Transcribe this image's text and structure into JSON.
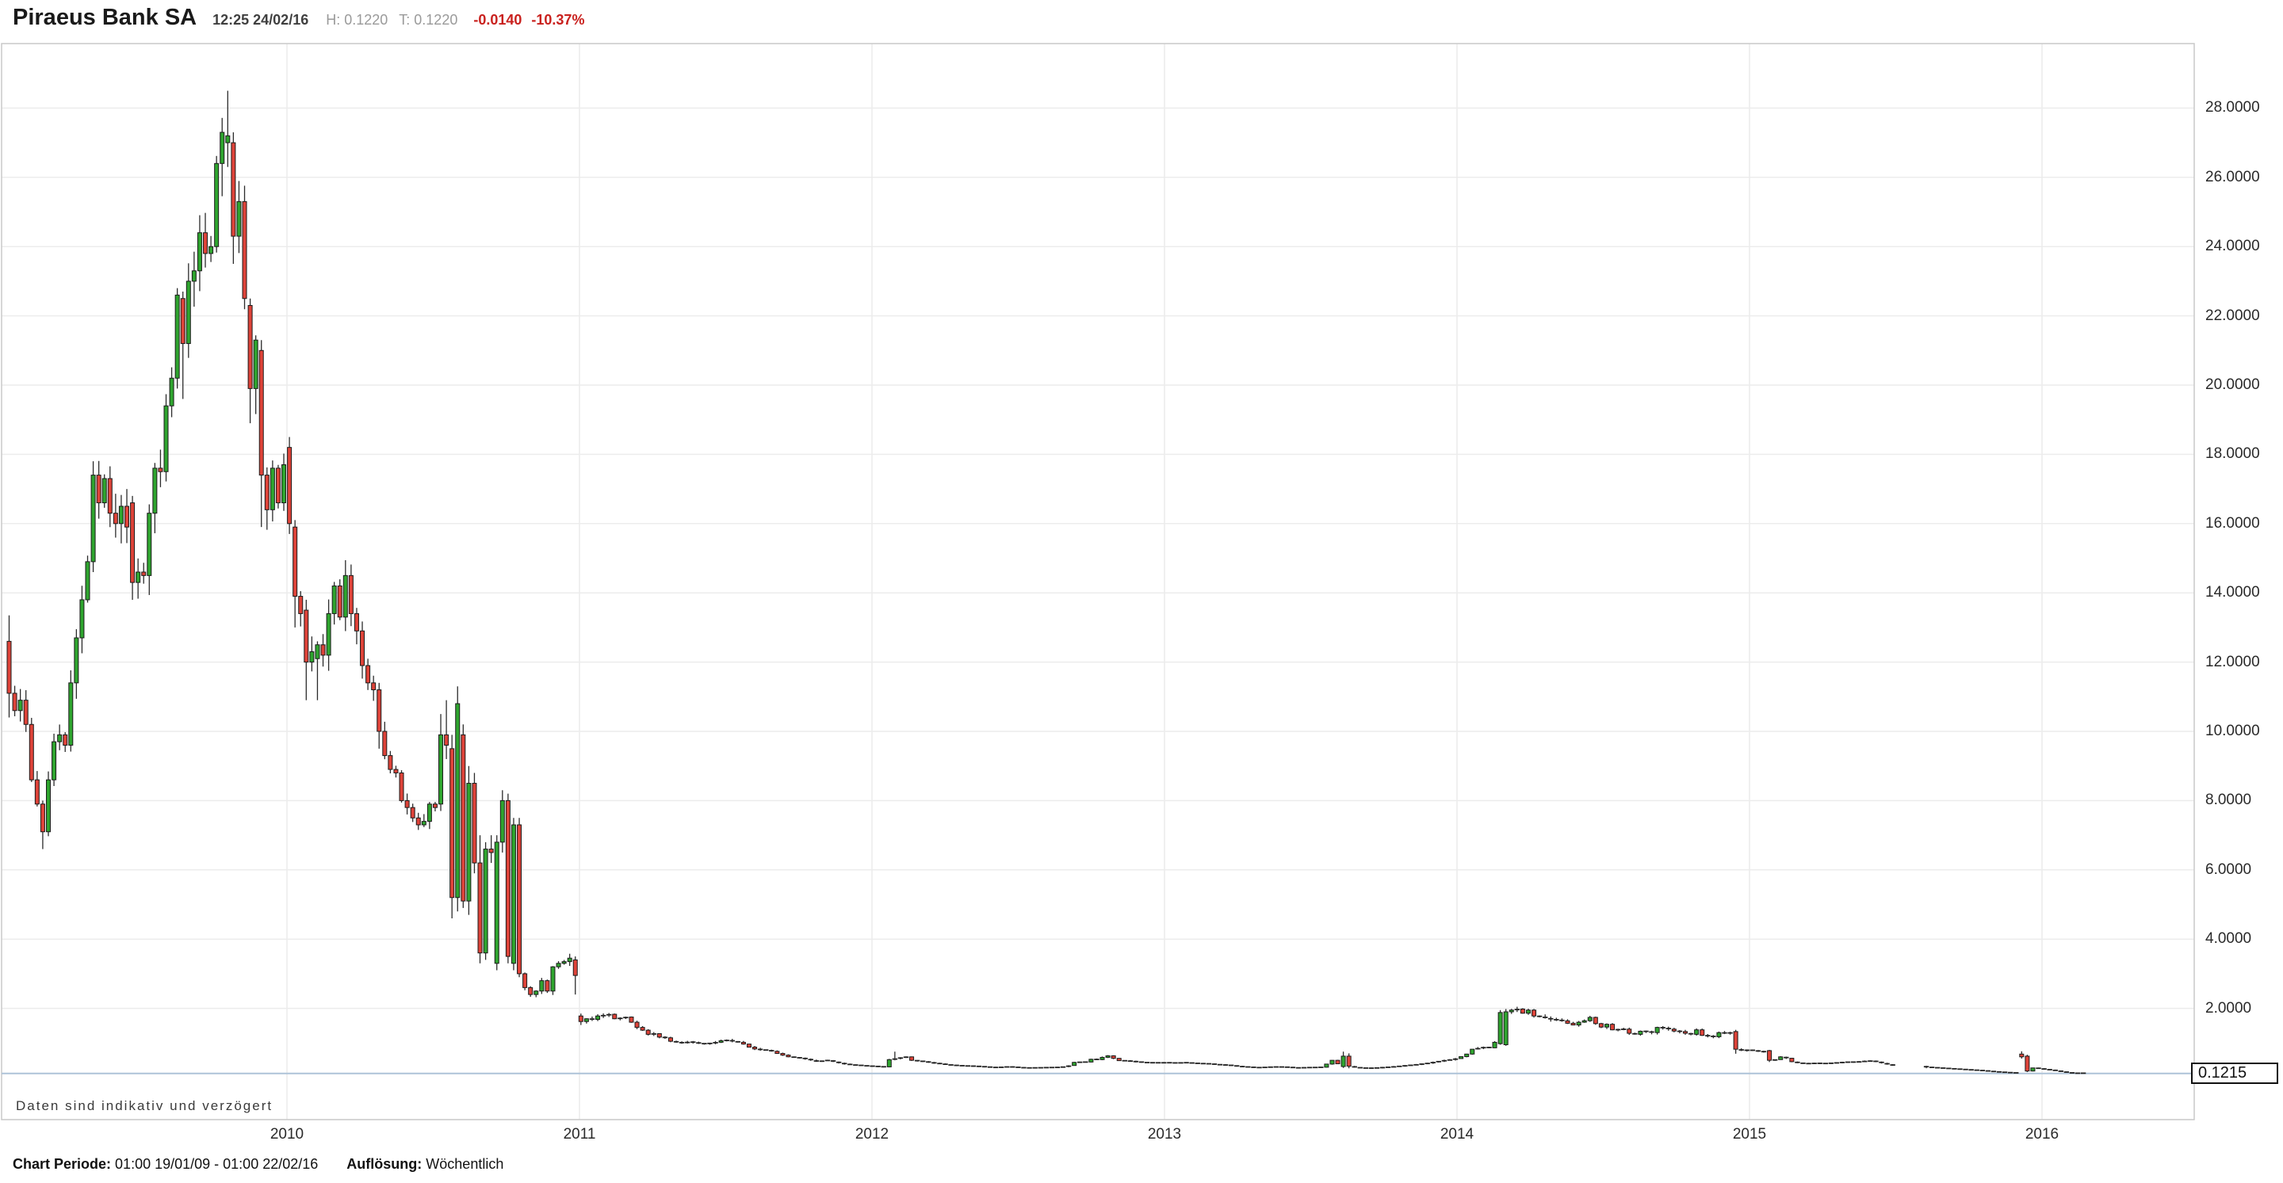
{
  "header": {
    "title": "Piraeus Bank SA",
    "timestamp": "12:25 24/02/16",
    "high_label": "H: 0.1220",
    "trade_label": "T: 0.1220",
    "change_abs": "-0.0140",
    "change_pct": "-10.37%"
  },
  "disclaimer": "Daten sind indikativ und verzögert",
  "footer": {
    "period_label": "Chart Periode:",
    "period_value": "01:00 19/01/09 - 01:00 22/02/16",
    "resolution_label": "Auflösung:",
    "resolution_value": "Wöchentlich"
  },
  "price_box": "0.1215",
  "chart_data": {
    "type": "candlestick",
    "title": "Piraeus Bank SA",
    "resolution": "weekly",
    "period": "19/01/09 - 22/02/16",
    "weeks": 371,
    "start_year_fraction": 2009.05,
    "last_price": 0.1215,
    "ylim": [
      -1.2,
      29.85
    ],
    "grid": true,
    "y_ticks": [
      {
        "value": 28,
        "label": "28.0000"
      },
      {
        "value": 26,
        "label": "26.0000"
      },
      {
        "value": 24,
        "label": "24.0000"
      },
      {
        "value": 22,
        "label": "22.0000"
      },
      {
        "value": 20,
        "label": "20.0000"
      },
      {
        "value": 18,
        "label": "18.0000"
      },
      {
        "value": 16,
        "label": "16.0000"
      },
      {
        "value": 14,
        "label": "14.0000"
      },
      {
        "value": 12,
        "label": "12.0000"
      },
      {
        "value": 10,
        "label": "10.0000"
      },
      {
        "value": 8,
        "label": "8.0000"
      },
      {
        "value": 6,
        "label": "6.0000"
      },
      {
        "value": 4,
        "label": "4.0000"
      },
      {
        "value": 2,
        "label": "2.0000"
      }
    ],
    "x_years": [
      {
        "year": 2010,
        "label": "2010"
      },
      {
        "year": 2011,
        "label": "2011"
      },
      {
        "year": 2012,
        "label": "2012"
      },
      {
        "year": 2013,
        "label": "2013"
      },
      {
        "year": 2014,
        "label": "2014"
      },
      {
        "year": 2015,
        "label": "2015"
      },
      {
        "year": 2016,
        "label": "2016"
      }
    ],
    "colors": {
      "up": "#2FA52F",
      "down": "#DE4339",
      "outline": "#1b1b1b",
      "wick": "#2b2b2b",
      "price_line": "#AEC3D8",
      "grid": "#ECECEC",
      "border": "#C9C9C9",
      "change_red": "#C9211E"
    },
    "gaps": [
      [
        337,
        341
      ]
    ],
    "anchors": [
      [
        0,
        11.1
      ],
      [
        1,
        10.6
      ],
      [
        2,
        10.9
      ],
      [
        3,
        10.2
      ],
      [
        4,
        8.6
      ],
      [
        5,
        7.9
      ],
      [
        6,
        7.1
      ],
      [
        7,
        8.6
      ],
      [
        8,
        9.7
      ],
      [
        9,
        9.9
      ],
      [
        10,
        9.6
      ],
      [
        11,
        11.4
      ],
      [
        12,
        12.7
      ],
      [
        13,
        13.8
      ],
      [
        14,
        14.9
      ],
      [
        15,
        17.4
      ],
      [
        16,
        16.6
      ],
      [
        17,
        17.3
      ],
      [
        18,
        16.3
      ],
      [
        19,
        16.0
      ],
      [
        20,
        16.5
      ],
      [
        21,
        15.9
      ],
      [
        22,
        14.3
      ],
      [
        23,
        14.6
      ],
      [
        24,
        14.5
      ],
      [
        25,
        16.3
      ],
      [
        26,
        17.6
      ],
      [
        27,
        17.5
      ],
      [
        28,
        19.4
      ],
      [
        29,
        20.2
      ],
      [
        30,
        22.6
      ],
      [
        31,
        21.2
      ],
      [
        32,
        23.0
      ],
      [
        33,
        23.3
      ],
      [
        34,
        24.4
      ],
      [
        35,
        23.8
      ],
      [
        36,
        24.0
      ],
      [
        37,
        26.4
      ],
      [
        38,
        27.3
      ],
      [
        39,
        27.2
      ],
      [
        40,
        24.3
      ],
      [
        41,
        25.3
      ],
      [
        42,
        22.5
      ],
      [
        43,
        19.9
      ],
      [
        44,
        21.3
      ],
      [
        45,
        17.4
      ],
      [
        46,
        16.4
      ],
      [
        47,
        17.6
      ],
      [
        48,
        16.6
      ],
      [
        49,
        17.7
      ],
      [
        50,
        16.0
      ],
      [
        51,
        13.9
      ],
      [
        52,
        13.4
      ],
      [
        53,
        12.0
      ],
      [
        54,
        12.3
      ],
      [
        55,
        12.5
      ],
      [
        56,
        12.2
      ],
      [
        57,
        13.4
      ],
      [
        58,
        14.2
      ],
      [
        59,
        13.3
      ],
      [
        60,
        14.5
      ],
      [
        61,
        13.4
      ],
      [
        62,
        12.9
      ],
      [
        63,
        11.9
      ],
      [
        64,
        11.4
      ],
      [
        65,
        11.2
      ],
      [
        66,
        10.0
      ],
      [
        67,
        9.3
      ],
      [
        68,
        8.9
      ],
      [
        69,
        8.8
      ],
      [
        70,
        8.0
      ],
      [
        71,
        7.8
      ],
      [
        72,
        7.5
      ],
      [
        73,
        7.3
      ],
      [
        74,
        7.4
      ],
      [
        75,
        7.9
      ],
      [
        76,
        7.8
      ],
      [
        77,
        9.9
      ],
      [
        78,
        9.6
      ],
      [
        79,
        5.2
      ],
      [
        80,
        10.8
      ],
      [
        81,
        5.1
      ],
      [
        82,
        8.5
      ],
      [
        83,
        6.2
      ],
      [
        84,
        3.6
      ],
      [
        85,
        6.6
      ],
      [
        86,
        6.5
      ],
      [
        87,
        6.8
      ],
      [
        88,
        8.0
      ],
      [
        89,
        3.5
      ],
      [
        90,
        7.3
      ],
      [
        91,
        3.0
      ],
      [
        92,
        2.6
      ],
      [
        93,
        2.4
      ],
      [
        94,
        2.5
      ],
      [
        95,
        2.8
      ],
      [
        96,
        2.5
      ],
      [
        97,
        3.2
      ],
      [
        98,
        3.3
      ],
      [
        99,
        3.35
      ],
      [
        100,
        3.45
      ],
      [
        101,
        2.95
      ],
      [
        102,
        1.62
      ],
      [
        103,
        1.7
      ],
      [
        104,
        1.68
      ],
      [
        105,
        1.78
      ],
      [
        106,
        1.8
      ],
      [
        107,
        1.83
      ],
      [
        108,
        1.7
      ],
      [
        109,
        1.72
      ],
      [
        110,
        1.75
      ],
      [
        111,
        1.6
      ],
      [
        112,
        1.45
      ],
      [
        113,
        1.37
      ],
      [
        114,
        1.25
      ],
      [
        115,
        1.27
      ],
      [
        116,
        1.17
      ],
      [
        117,
        1.15
      ],
      [
        118,
        1.05
      ],
      [
        119,
        1.02
      ],
      [
        120,
        1.0
      ],
      [
        121,
        1.03
      ],
      [
        122,
        1.02
      ],
      [
        124,
        0.98
      ],
      [
        126,
        1.02
      ],
      [
        128,
        1.08
      ],
      [
        130,
        1.02
      ],
      [
        132,
        0.88
      ],
      [
        134,
        0.8
      ],
      [
        136,
        0.76
      ],
      [
        138,
        0.65
      ],
      [
        140,
        0.58
      ],
      [
        142,
        0.54
      ],
      [
        144,
        0.46
      ],
      [
        146,
        0.5
      ],
      [
        148,
        0.42
      ],
      [
        150,
        0.37
      ],
      [
        152,
        0.35
      ],
      [
        154,
        0.33
      ],
      [
        156,
        0.31
      ],
      [
        157,
        0.52
      ],
      [
        158,
        0.55
      ],
      [
        159,
        0.58
      ],
      [
        160,
        0.6
      ],
      [
        161,
        0.5
      ],
      [
        162,
        0.48
      ],
      [
        164,
        0.44
      ],
      [
        166,
        0.4
      ],
      [
        168,
        0.36
      ],
      [
        170,
        0.34
      ],
      [
        172,
        0.33
      ],
      [
        174,
        0.31
      ],
      [
        176,
        0.29
      ],
      [
        178,
        0.31
      ],
      [
        180,
        0.29
      ],
      [
        183,
        0.285
      ],
      [
        186,
        0.29
      ],
      [
        188,
        0.31
      ],
      [
        189,
        0.35
      ],
      [
        190,
        0.44
      ],
      [
        192,
        0.45
      ],
      [
        193,
        0.53
      ],
      [
        194,
        0.52
      ],
      [
        196,
        0.63
      ],
      [
        198,
        0.49
      ],
      [
        200,
        0.47
      ],
      [
        202,
        0.44
      ],
      [
        204,
        0.43
      ],
      [
        206,
        0.43
      ],
      [
        208,
        0.42
      ],
      [
        210,
        0.43
      ],
      [
        212,
        0.41
      ],
      [
        214,
        0.4
      ],
      [
        216,
        0.37
      ],
      [
        218,
        0.35
      ],
      [
        220,
        0.31
      ],
      [
        222,
        0.29
      ],
      [
        224,
        0.3
      ],
      [
        226,
        0.31
      ],
      [
        228,
        0.3
      ],
      [
        230,
        0.28
      ],
      [
        232,
        0.29
      ],
      [
        234,
        0.3
      ],
      [
        236,
        0.5
      ],
      [
        237,
        0.4
      ],
      [
        238,
        0.62
      ],
      [
        239,
        0.33
      ],
      [
        240,
        0.29
      ],
      [
        242,
        0.27
      ],
      [
        244,
        0.28
      ],
      [
        246,
        0.3
      ],
      [
        248,
        0.33
      ],
      [
        250,
        0.36
      ],
      [
        252,
        0.4
      ],
      [
        254,
        0.45
      ],
      [
        256,
        0.5
      ],
      [
        258,
        0.55
      ],
      [
        260,
        0.68
      ],
      [
        261,
        0.82
      ],
      [
        262,
        0.85
      ],
      [
        263,
        0.88
      ],
      [
        264,
        0.86
      ],
      [
        265,
        1.02
      ],
      [
        266,
        1.88
      ],
      [
        267,
        1.9
      ],
      [
        268,
        1.95
      ],
      [
        269,
        1.98
      ],
      [
        270,
        1.86
      ],
      [
        271,
        1.95
      ],
      [
        272,
        1.78
      ],
      [
        273,
        1.76
      ],
      [
        274,
        1.72
      ],
      [
        275,
        1.68
      ],
      [
        277,
        1.64
      ],
      [
        279,
        1.52
      ],
      [
        280,
        1.6
      ],
      [
        282,
        1.74
      ],
      [
        283,
        1.56
      ],
      [
        284,
        1.46
      ],
      [
        285,
        1.54
      ],
      [
        286,
        1.38
      ],
      [
        288,
        1.4
      ],
      [
        289,
        1.28
      ],
      [
        290,
        1.25
      ],
      [
        291,
        1.34
      ],
      [
        293,
        1.3
      ],
      [
        294,
        1.45
      ],
      [
        296,
        1.4
      ],
      [
        298,
        1.33
      ],
      [
        300,
        1.25
      ],
      [
        301,
        1.38
      ],
      [
        302,
        1.22
      ],
      [
        303,
        1.2
      ],
      [
        304,
        1.18
      ],
      [
        305,
        1.3
      ],
      [
        306,
        1.28
      ],
      [
        307,
        1.3
      ],
      [
        308,
        0.82
      ],
      [
        309,
        0.78
      ],
      [
        310,
        0.8
      ],
      [
        311,
        0.78
      ],
      [
        312,
        0.76
      ],
      [
        313,
        0.74
      ],
      [
        314,
        0.5
      ],
      [
        315,
        0.52
      ],
      [
        316,
        0.6
      ],
      [
        317,
        0.56
      ],
      [
        318,
        0.46
      ],
      [
        319,
        0.42
      ],
      [
        320,
        0.41
      ],
      [
        321,
        0.4
      ],
      [
        322,
        0.42
      ],
      [
        324,
        0.41
      ],
      [
        326,
        0.43
      ],
      [
        328,
        0.45
      ],
      [
        330,
        0.46
      ],
      [
        332,
        0.48
      ],
      [
        333,
        0.46
      ],
      [
        334,
        0.42
      ],
      [
        335,
        0.38
      ],
      [
        336,
        0.35
      ],
      [
        342,
        0.3
      ],
      [
        343,
        0.29
      ],
      [
        344,
        0.28
      ],
      [
        345,
        0.27
      ],
      [
        346,
        0.26
      ],
      [
        347,
        0.25
      ],
      [
        348,
        0.24
      ],
      [
        349,
        0.23
      ],
      [
        350,
        0.22
      ],
      [
        351,
        0.21
      ],
      [
        352,
        0.2
      ],
      [
        353,
        0.185
      ],
      [
        354,
        0.17
      ],
      [
        355,
        0.16
      ],
      [
        356,
        0.15
      ],
      [
        357,
        0.14
      ],
      [
        358,
        0.135
      ],
      [
        359,
        0.6
      ],
      [
        360,
        0.19
      ],
      [
        361,
        0.28
      ],
      [
        362,
        0.26
      ],
      [
        363,
        0.24
      ],
      [
        364,
        0.22
      ],
      [
        365,
        0.2
      ],
      [
        366,
        0.17
      ],
      [
        367,
        0.15
      ],
      [
        368,
        0.125
      ],
      [
        369,
        0.13
      ],
      [
        370,
        0.1215
      ]
    ],
    "events": {
      "0": [
        12.6,
        13.35,
        10.4,
        11.1
      ],
      "6": [
        7.9,
        8.0,
        6.6,
        7.1
      ],
      "15": [
        14.9,
        17.8,
        14.6,
        17.4
      ],
      "22": [
        16.6,
        16.8,
        13.8,
        14.3
      ],
      "30": [
        20.2,
        22.8,
        19.9,
        22.6
      ],
      "31": [
        22.5,
        22.7,
        19.6,
        21.2
      ],
      "39": [
        27.0,
        28.5,
        26.3,
        27.2
      ],
      "40": [
        27.0,
        27.3,
        23.5,
        24.3
      ],
      "43": [
        22.3,
        22.5,
        18.9,
        19.9
      ],
      "45": [
        21.0,
        21.3,
        15.9,
        17.4
      ],
      "50": [
        18.2,
        18.5,
        15.7,
        16.0
      ],
      "51": [
        15.9,
        16.1,
        13.0,
        13.9
      ],
      "53": [
        13.5,
        13.8,
        10.9,
        12.0
      ],
      "55": [
        12.1,
        12.6,
        10.9,
        12.5
      ],
      "66": [
        11.2,
        11.4,
        9.5,
        10.0
      ],
      "77": [
        7.9,
        10.5,
        7.7,
        9.9
      ],
      "78": [
        9.9,
        10.9,
        9.2,
        9.6
      ],
      "79": [
        9.5,
        9.9,
        4.6,
        5.2
      ],
      "80": [
        5.2,
        11.3,
        4.8,
        10.8
      ],
      "81": [
        9.9,
        10.2,
        4.9,
        5.1
      ],
      "82": [
        5.1,
        9.0,
        4.7,
        8.5
      ],
      "83": [
        8.5,
        8.8,
        5.9,
        6.2
      ],
      "84": [
        6.2,
        7.0,
        3.3,
        3.6
      ],
      "85": [
        3.6,
        6.8,
        3.4,
        6.6
      ],
      "86": [
        6.6,
        7.0,
        6.2,
        6.5
      ],
      "87": [
        3.3,
        7.0,
        3.1,
        6.8
      ],
      "88": [
        6.8,
        8.3,
        6.5,
        8.0
      ],
      "89": [
        8.0,
        8.2,
        3.3,
        3.5
      ],
      "90": [
        3.3,
        7.5,
        3.1,
        7.3
      ],
      "91": [
        7.3,
        7.5,
        2.9,
        3.0
      ],
      "101": [
        3.4,
        3.5,
        2.4,
        2.95
      ],
      "102": [
        1.78,
        1.85,
        1.52,
        1.62
      ],
      "158": [
        0.52,
        0.75,
        0.5,
        0.55
      ],
      "238": [
        0.32,
        0.75,
        0.28,
        0.62
      ],
      "239": [
        0.62,
        0.7,
        0.27,
        0.33
      ],
      "266": [
        0.98,
        1.95,
        0.95,
        1.88
      ],
      "267": [
        0.95,
        1.98,
        0.92,
        1.9
      ],
      "308": [
        1.33,
        1.38,
        0.69,
        0.82
      ],
      "314": [
        0.78,
        0.8,
        0.45,
        0.5
      ],
      "342": [
        0.33,
        0.34,
        0.27,
        0.3
      ],
      "359": [
        0.68,
        0.76,
        0.55,
        0.6
      ],
      "360": [
        0.62,
        0.66,
        0.16,
        0.19
      ],
      "370": [
        0.135,
        0.142,
        0.115,
        0.1215
      ]
    }
  }
}
